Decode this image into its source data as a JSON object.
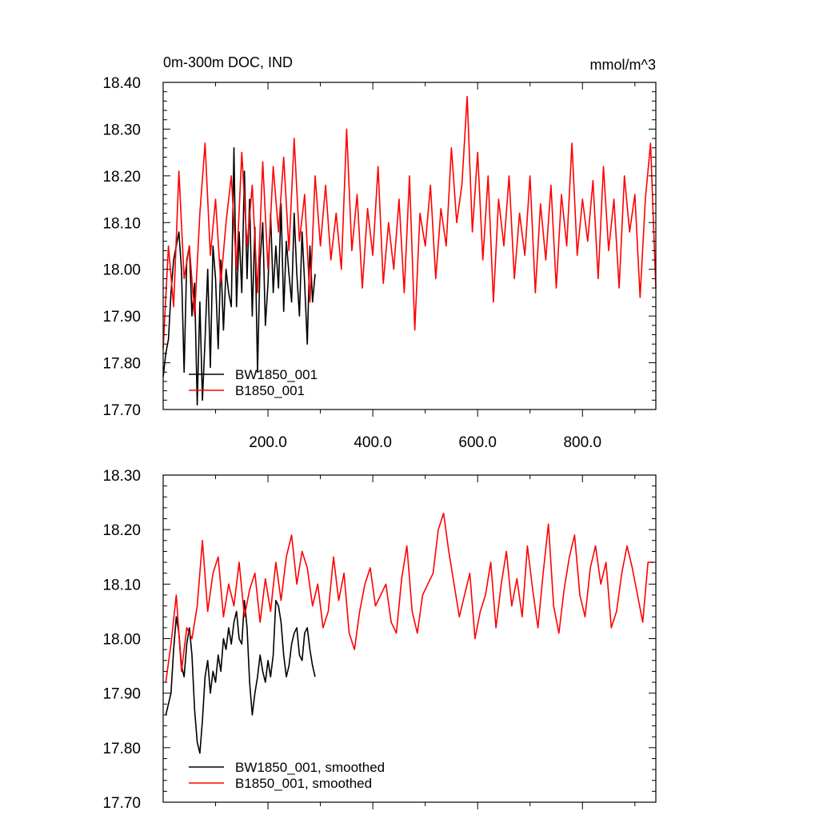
{
  "figure": {
    "title": "0m-300m DOC, IND",
    "units": "mmol/m^3"
  },
  "chart_data": [
    {
      "type": "line",
      "xlim": [
        0,
        940
      ],
      "ylim": [
        17.7,
        18.4
      ],
      "xticks": [
        200,
        400,
        600,
        800
      ],
      "xtick_labels": [
        "200.0",
        "400.0",
        "600.0",
        "800.0"
      ],
      "yticks": [
        17.7,
        17.8,
        17.9,
        18.0,
        18.1,
        18.2,
        18.3,
        18.4
      ],
      "ytick_labels": [
        "17.70",
        "17.80",
        "17.90",
        "18.00",
        "18.10",
        "18.20",
        "18.30",
        "18.40"
      ],
      "grid": false,
      "legend_position": "bottom-left",
      "series": [
        {
          "name": "BW1850_001",
          "color": "#000000",
          "x": [
            0,
            5,
            10,
            15,
            20,
            25,
            30,
            35,
            40,
            45,
            50,
            55,
            60,
            65,
            70,
            75,
            80,
            85,
            90,
            95,
            100,
            105,
            110,
            115,
            120,
            125,
            130,
            135,
            140,
            145,
            150,
            155,
            160,
            165,
            170,
            175,
            180,
            185,
            190,
            195,
            200,
            205,
            210,
            215,
            220,
            225,
            230,
            235,
            240,
            245,
            250,
            255,
            260,
            265,
            270,
            275,
            280,
            285,
            290
          ],
          "values": [
            17.77,
            17.82,
            17.85,
            17.95,
            18.02,
            18.05,
            18.08,
            18.0,
            17.78,
            18.02,
            18.05,
            17.9,
            17.97,
            17.71,
            17.93,
            17.72,
            17.85,
            18.0,
            17.79,
            18.05,
            17.98,
            17.83,
            18.02,
            17.87,
            18.0,
            17.95,
            17.92,
            18.26,
            17.92,
            18.08,
            17.95,
            18.21,
            17.98,
            18.15,
            17.9,
            18.09,
            17.78,
            18.02,
            18.1,
            17.88,
            17.97,
            18.12,
            17.95,
            18.05,
            17.96,
            18.14,
            17.91,
            18.06,
            17.99,
            17.93,
            18.12,
            17.99,
            17.9,
            18.08,
            17.97,
            17.84,
            18.05,
            17.93,
            17.99
          ]
        },
        {
          "name": "B1850_001",
          "color": "#ff0000",
          "x": [
            0,
            10,
            20,
            30,
            40,
            50,
            60,
            70,
            80,
            90,
            100,
            110,
            120,
            130,
            140,
            150,
            160,
            170,
            180,
            190,
            200,
            210,
            220,
            230,
            240,
            250,
            260,
            270,
            280,
            290,
            300,
            310,
            320,
            330,
            340,
            350,
            360,
            370,
            380,
            390,
            400,
            410,
            420,
            430,
            440,
            450,
            460,
            470,
            480,
            490,
            500,
            510,
            520,
            530,
            540,
            550,
            560,
            570,
            580,
            590,
            600,
            610,
            620,
            630,
            640,
            650,
            660,
            670,
            680,
            690,
            700,
            710,
            720,
            730,
            740,
            750,
            760,
            770,
            780,
            790,
            800,
            810,
            820,
            830,
            840,
            850,
            860,
            870,
            880,
            890,
            900,
            910,
            920,
            930,
            940
          ],
          "values": [
            17.83,
            18.05,
            17.92,
            18.21,
            17.98,
            18.05,
            17.9,
            18.12,
            18.27,
            18.03,
            18.15,
            17.97,
            18.1,
            18.2,
            18.0,
            18.25,
            18.05,
            18.18,
            17.95,
            18.23,
            18.0,
            18.22,
            18.08,
            18.24,
            18.04,
            18.28,
            18.06,
            18.16,
            17.93,
            18.2,
            18.05,
            18.18,
            18.02,
            18.12,
            18.0,
            18.3,
            18.04,
            18.16,
            17.96,
            18.13,
            18.03,
            18.22,
            17.97,
            18.1,
            18.0,
            18.15,
            17.95,
            18.2,
            17.87,
            18.12,
            18.05,
            18.18,
            17.98,
            18.13,
            18.05,
            18.26,
            18.1,
            18.18,
            18.37,
            18.08,
            18.25,
            18.02,
            18.2,
            17.93,
            18.15,
            18.05,
            18.2,
            17.98,
            18.12,
            18.03,
            18.2,
            17.95,
            18.14,
            18.02,
            18.18,
            17.96,
            18.16,
            18.05,
            18.27,
            18.03,
            18.15,
            18.06,
            18.19,
            17.98,
            18.22,
            18.04,
            18.15,
            17.96,
            18.2,
            18.08,
            18.16,
            17.94,
            18.15,
            18.27,
            17.96
          ]
        }
      ]
    },
    {
      "type": "line",
      "xlim": [
        0,
        940
      ],
      "ylim": [
        17.7,
        18.3
      ],
      "yticks": [
        17.7,
        17.8,
        17.9,
        18.0,
        18.1,
        18.2,
        18.3
      ],
      "ytick_labels": [
        "17.70",
        "17.80",
        "17.90",
        "18.00",
        "18.10",
        "18.20",
        "18.30"
      ],
      "grid": false,
      "legend_position": "bottom-left",
      "series": [
        {
          "name": "BW1850_001, smoothed",
          "color": "#000000",
          "x": [
            5,
            10,
            15,
            20,
            25,
            30,
            35,
            40,
            45,
            50,
            55,
            60,
            65,
            70,
            75,
            80,
            85,
            90,
            95,
            100,
            105,
            110,
            115,
            120,
            125,
            130,
            135,
            140,
            145,
            150,
            155,
            160,
            165,
            170,
            175,
            180,
            185,
            190,
            195,
            200,
            205,
            210,
            215,
            220,
            225,
            230,
            235,
            240,
            245,
            250,
            255,
            260,
            265,
            270,
            275,
            280,
            285,
            290
          ],
          "values": [
            17.86,
            17.88,
            17.9,
            17.98,
            18.04,
            18.01,
            17.95,
            17.93,
            17.99,
            18.02,
            17.97,
            17.87,
            17.81,
            17.79,
            17.85,
            17.93,
            17.96,
            17.9,
            17.94,
            17.92,
            17.97,
            17.94,
            18.0,
            17.98,
            18.02,
            17.99,
            18.03,
            18.05,
            18.0,
            17.99,
            18.07,
            18.02,
            17.92,
            17.86,
            17.9,
            17.93,
            17.97,
            17.94,
            17.92,
            17.96,
            17.93,
            17.97,
            18.07,
            18.06,
            18.03,
            17.97,
            17.93,
            17.95,
            17.99,
            18.01,
            18.02,
            17.97,
            17.96,
            18.01,
            18.02,
            17.98,
            17.95,
            17.93
          ]
        },
        {
          "name": "B1850_001, smoothed",
          "color": "#ff0000",
          "x": [
            5,
            15,
            25,
            35,
            45,
            55,
            65,
            75,
            85,
            95,
            105,
            115,
            125,
            135,
            145,
            155,
            165,
            175,
            185,
            195,
            205,
            215,
            225,
            235,
            245,
            255,
            265,
            275,
            285,
            295,
            305,
            315,
            325,
            335,
            345,
            355,
            365,
            375,
            385,
            395,
            405,
            415,
            425,
            435,
            445,
            455,
            465,
            475,
            485,
            495,
            505,
            515,
            525,
            535,
            545,
            555,
            565,
            575,
            585,
            595,
            605,
            615,
            625,
            635,
            645,
            655,
            665,
            675,
            685,
            695,
            705,
            715,
            725,
            735,
            745,
            755,
            765,
            775,
            785,
            795,
            805,
            815,
            825,
            835,
            845,
            855,
            865,
            875,
            885,
            895,
            905,
            915,
            925,
            935
          ],
          "values": [
            17.92,
            17.99,
            18.08,
            17.94,
            18.02,
            18.0,
            18.06,
            18.18,
            18.05,
            18.12,
            18.15,
            18.04,
            18.1,
            18.06,
            18.14,
            18.04,
            18.09,
            18.12,
            18.03,
            18.11,
            18.05,
            18.14,
            18.07,
            18.15,
            18.19,
            18.1,
            18.16,
            18.13,
            18.06,
            18.1,
            18.02,
            18.05,
            18.15,
            18.07,
            18.12,
            18.01,
            17.98,
            18.05,
            18.1,
            18.13,
            18.06,
            18.08,
            18.1,
            18.03,
            18.01,
            18.11,
            18.17,
            18.05,
            18.01,
            18.08,
            18.1,
            18.12,
            18.2,
            18.23,
            18.16,
            18.1,
            18.04,
            18.08,
            18.12,
            18.0,
            18.05,
            18.08,
            18.14,
            18.02,
            18.1,
            18.16,
            18.06,
            18.11,
            18.04,
            18.17,
            18.09,
            18.02,
            18.12,
            18.21,
            18.06,
            18.01,
            18.09,
            18.15,
            18.19,
            18.08,
            18.04,
            18.13,
            18.17,
            18.1,
            18.14,
            18.02,
            18.05,
            18.12,
            18.17,
            18.13,
            18.08,
            18.03,
            18.14,
            18.14
          ]
        }
      ]
    }
  ]
}
